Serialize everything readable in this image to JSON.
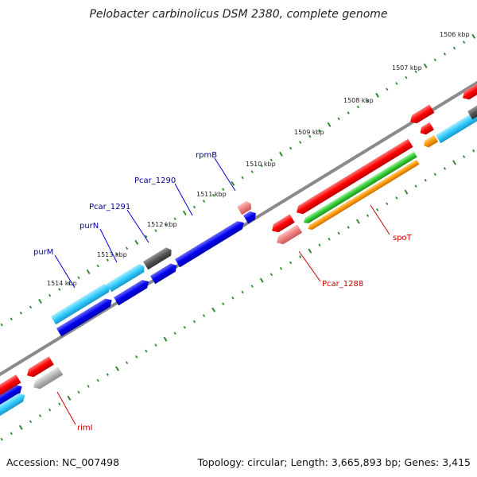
{
  "title": "Pelobacter carbinolicus DSM 2380, complete genome",
  "footer": {
    "accession": "Accession: NC_007498",
    "summary": "Topology: circular; Length: 3,665,893 bp; Genes: 3,415"
  },
  "colors": {
    "backbone": "#808080",
    "tick": "#2e8b2e",
    "forward_cds": "#0000ff",
    "reverse_cds": "#ff0000",
    "gene_forward": "#33ccff",
    "gene_reverse": "#ff0000",
    "pseudo_dark": "#555555",
    "pseudo_light": "#aaaaaa",
    "rna_pink": "#f08080",
    "green_feature": "#33cc33",
    "orange_feature": "#ff9900",
    "label_forward": "#000099",
    "label_reverse": "#cc0000"
  },
  "position_labels": [
    "1506 kbp",
    "1507 kbp",
    "1508 kbp",
    "1509 kbp",
    "1510 kbp",
    "1511 kbp",
    "1512 kbp",
    "1513 kbp",
    "1514 kbp"
  ],
  "gene_labels": {
    "rpmB": "rpmB",
    "pcar_1290": "Pcar_1290",
    "pcar_1291": "Pcar_1291",
    "purN": "purN",
    "purM": "purM",
    "spoT": "spoT",
    "pcar_1288": "Pcar_1288",
    "rimI": "rimI"
  }
}
